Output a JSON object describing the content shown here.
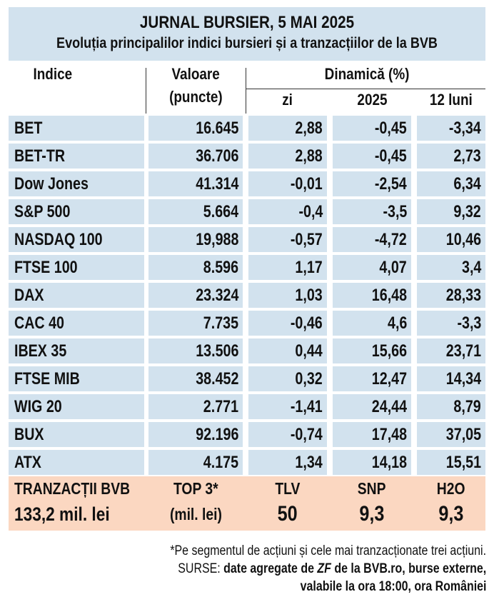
{
  "header": {
    "title": "JURNAL BURSIER, 5 MAI 2025",
    "subtitle": "Evoluția principalilor indici bursieri și a tranzacțiilor de la BVB"
  },
  "columns": {
    "indice": "Indice",
    "valoare": "Valoare",
    "puncte": "(puncte)",
    "dinamica": "Dinamică (%)",
    "zi": "zi",
    "an": "2025",
    "luni": "12 luni"
  },
  "rows": [
    {
      "name": "BET",
      "value": "16.645",
      "zi": "2,88",
      "an": "-0,45",
      "luni": "-3,34"
    },
    {
      "name": "BET-TR",
      "value": "36.706",
      "zi": "2,88",
      "an": "-0,45",
      "luni": "2,73"
    },
    {
      "name": "Dow Jones",
      "value": "41.314",
      "zi": "-0,01",
      "an": "-2,54",
      "luni": "6,34"
    },
    {
      "name": "S&P 500",
      "value": "5.664",
      "zi": "-0,4",
      "an": "-3,5",
      "luni": "9,32"
    },
    {
      "name": "NASDAQ 100",
      "value": "19,988",
      "zi": "-0,57",
      "an": "-4,72",
      "luni": "10,46"
    },
    {
      "name": "FTSE 100",
      "value": "8.596",
      "zi": "1,17",
      "an": "4,07",
      "luni": "3,4"
    },
    {
      "name": "DAX",
      "value": "23.324",
      "zi": "1,03",
      "an": "16,48",
      "luni": "28,33"
    },
    {
      "name": "CAC 40",
      "value": "7.735",
      "zi": "-0,46",
      "an": "4,6",
      "luni": "-3,3"
    },
    {
      "name": "IBEX 35",
      "value": "13.506",
      "zi": "0,44",
      "an": "15,66",
      "luni": "23,71"
    },
    {
      "name": "FTSE MIB",
      "value": "38.452",
      "zi": "0,32",
      "an": "12,47",
      "luni": "14,34"
    },
    {
      "name": "WIG 20",
      "value": "2.771",
      "zi": "-1,41",
      "an": "24,44",
      "luni": "8,79"
    },
    {
      "name": "BUX",
      "value": "92.196",
      "zi": "-0,74",
      "an": "17,48",
      "luni": "37,05"
    },
    {
      "name": "ATX",
      "value": "4.175",
      "zi": "1,34",
      "an": "14,18",
      "luni": "15,51"
    }
  ],
  "bvb": {
    "label": "TRANZACȚII BVB",
    "total": "133,2 mil. lei",
    "top_label": "TOP 3*",
    "top_unit": "(mil. lei)",
    "stocks": [
      {
        "symbol": "TLV",
        "value": "50"
      },
      {
        "symbol": "SNP",
        "value": "9,3"
      },
      {
        "symbol": "H2O",
        "value": "9,3"
      }
    ]
  },
  "footnote": {
    "note": "*Pe segmentul de acțiuni și cele mai tranzacționate trei acțiuni.",
    "source_prefix": "SURSE: ",
    "source_bold_1": "date agregate de ",
    "source_zf": "ZF",
    "source_bold_2": " de la BVB.ro, burse externe,",
    "source_line2": "valabile la ora 18:00, ora României"
  },
  "colors": {
    "table_blue": "#d2e2ee",
    "bvb_peach": "#fbd7c1"
  }
}
